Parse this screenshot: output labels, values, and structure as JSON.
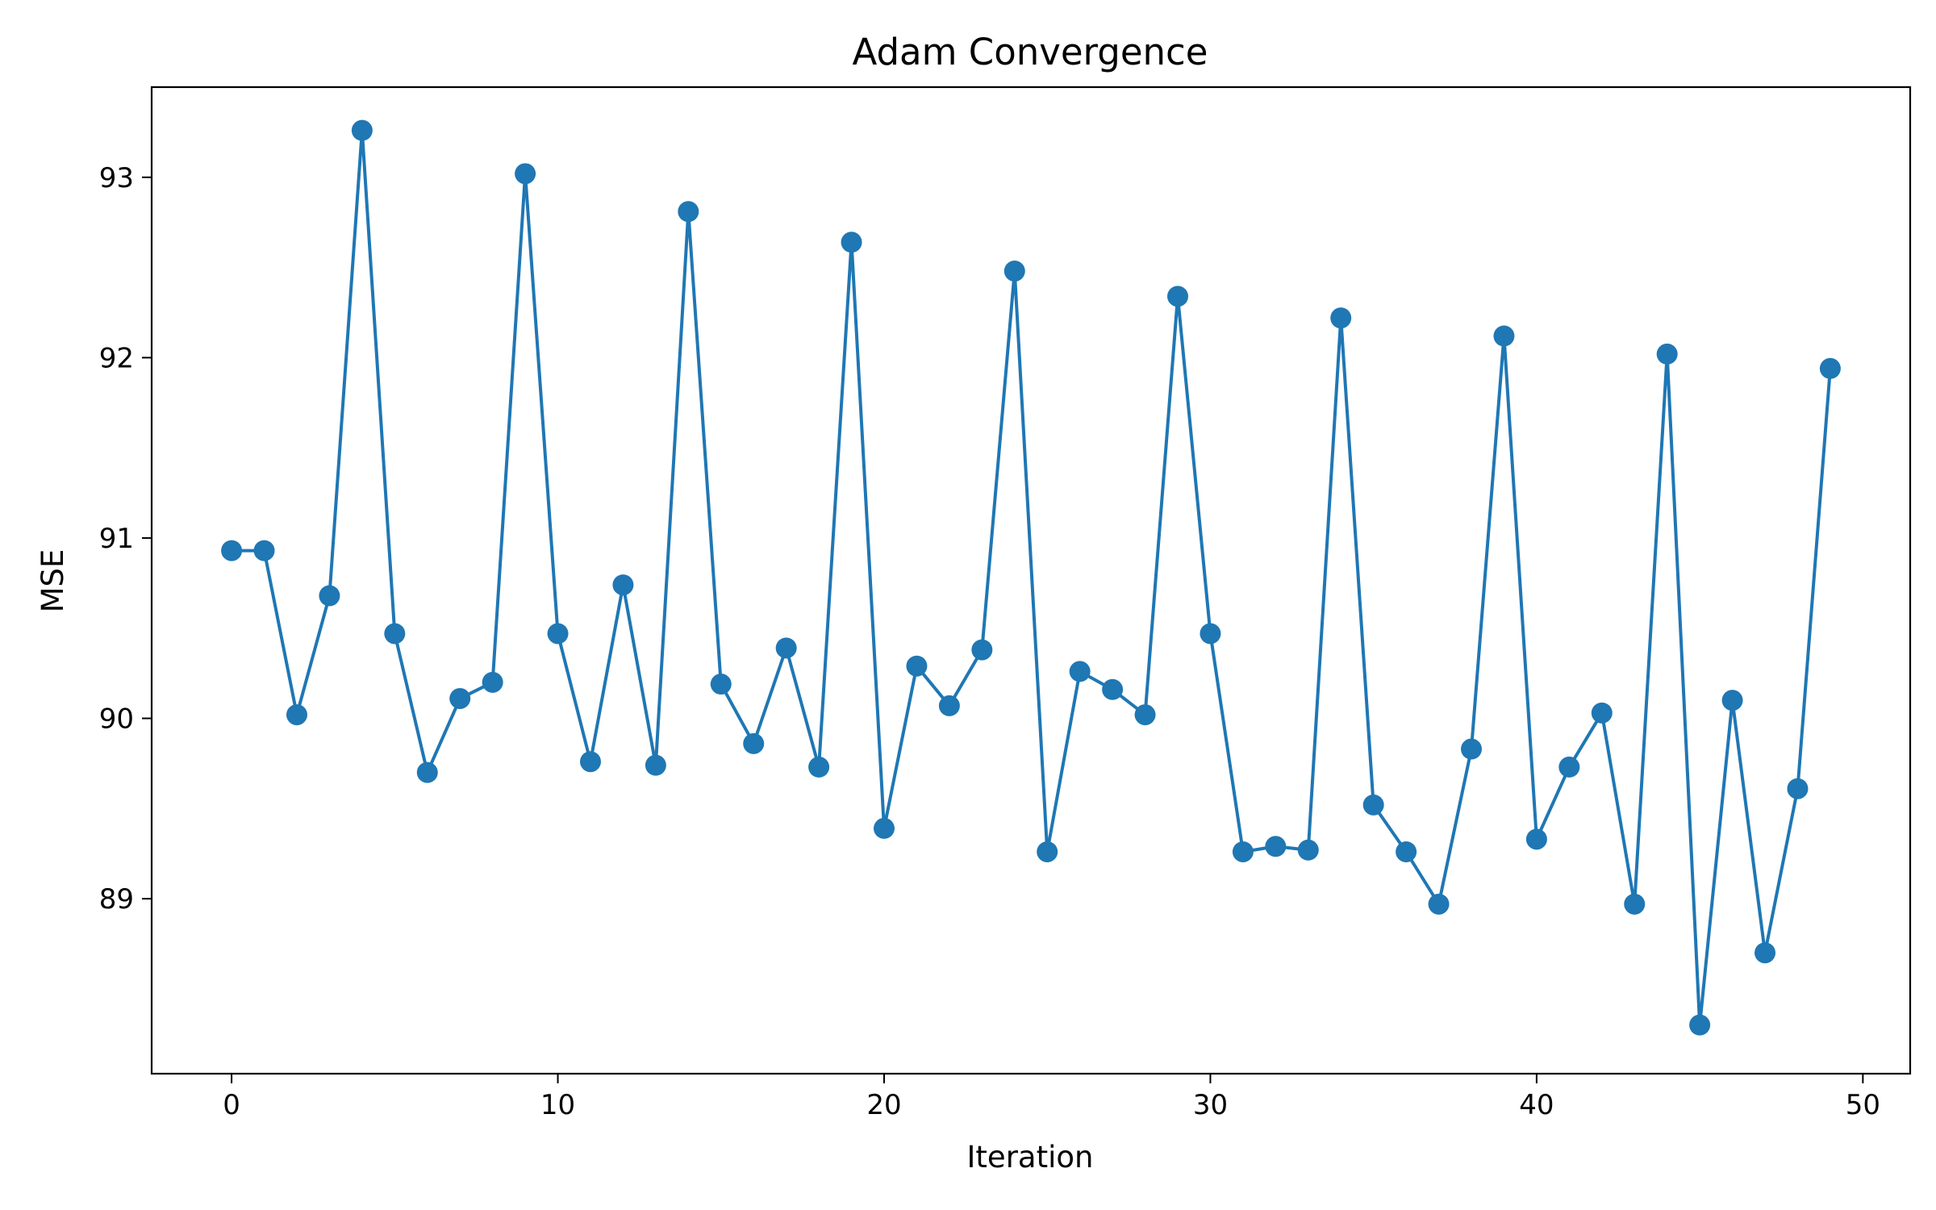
{
  "chart_data": {
    "type": "line",
    "title": "Adam Convergence",
    "xlabel": "Iteration",
    "ylabel": "MSE",
    "xlim": [
      -2.45,
      51.45
    ],
    "ylim": [
      88.03,
      93.5
    ],
    "xticks": [
      0,
      10,
      20,
      30,
      40,
      50
    ],
    "yticks": [
      89,
      90,
      91,
      92,
      93
    ],
    "grid": false,
    "line_color": "#1f77b4",
    "marker": "circle",
    "series": [
      {
        "x": [
          0,
          1,
          2,
          3,
          4,
          5,
          6,
          7,
          8,
          9,
          10,
          11,
          12,
          13,
          14,
          15,
          16,
          17,
          18,
          19,
          20,
          21,
          22,
          23,
          24,
          25,
          26,
          27,
          28,
          29,
          30,
          31,
          32,
          33,
          34,
          35,
          36,
          37,
          38,
          39,
          40,
          41,
          42,
          43,
          44,
          45,
          46,
          47,
          48,
          49
        ],
        "values": [
          90.93,
          90.93,
          90.02,
          90.68,
          93.26,
          90.47,
          89.7,
          90.11,
          90.2,
          93.02,
          90.47,
          89.76,
          90.74,
          89.74,
          92.81,
          90.19,
          89.86,
          90.39,
          89.73,
          92.64,
          89.39,
          90.29,
          90.07,
          90.38,
          92.48,
          89.26,
          90.26,
          90.16,
          90.02,
          92.34,
          90.47,
          89.26,
          89.29,
          89.27,
          92.22,
          89.52,
          89.26,
          88.97,
          89.83,
          92.12,
          89.33,
          89.73,
          90.03,
          88.97,
          92.02,
          88.3,
          90.1,
          88.7,
          89.61,
          91.94
        ]
      }
    ]
  }
}
